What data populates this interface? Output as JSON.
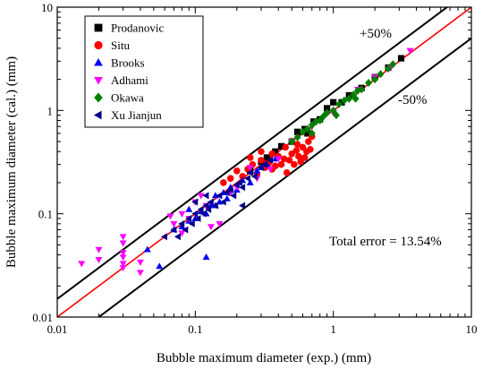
{
  "chart_data": {
    "type": "scatter",
    "title": "",
    "xlabel": "Bubble maximum diameter (exp.) (mm)",
    "ylabel": "Bubble maximum diameter (cal.) (mm)",
    "xscale": "log",
    "yscale": "log",
    "xlim": [
      0.01,
      10
    ],
    "ylim": [
      0.01,
      10
    ],
    "xticks": [
      0.01,
      0.1,
      1,
      10
    ],
    "yticks": [
      0.01,
      0.1,
      1,
      10
    ],
    "xtick_labels": [
      "0.01",
      "0.1",
      "1",
      "10"
    ],
    "ytick_labels": [
      "0.01",
      "0.1",
      "1",
      "10"
    ],
    "grid": false,
    "legend_position": "top-left",
    "reference_lines": [
      {
        "name": "y = x",
        "factor": 1.0,
        "color": "#ff0000"
      },
      {
        "name": "+50%",
        "factor": 1.5,
        "color": "#000000"
      },
      {
        "name": "-50%",
        "factor": 0.5,
        "color": "#000000"
      }
    ],
    "annotations": {
      "upper_band": "+50%",
      "lower_band": "-50%",
      "total_error": "Total error = 13.54%"
    },
    "series": [
      {
        "name": "Prodanovic",
        "marker": "square",
        "color": "#000000",
        "points": [
          [
            0.25,
            0.26
          ],
          [
            0.33,
            0.35
          ],
          [
            0.42,
            0.45
          ],
          [
            0.5,
            0.5
          ],
          [
            0.55,
            0.62
          ],
          [
            0.62,
            0.66
          ],
          [
            0.72,
            0.78
          ],
          [
            0.8,
            0.82
          ],
          [
            0.9,
            1.05
          ],
          [
            1.0,
            1.2
          ],
          [
            1.15,
            1.2
          ],
          [
            1.3,
            1.4
          ],
          [
            1.6,
            1.65
          ],
          [
            2.0,
            2.1
          ],
          [
            2.5,
            2.6
          ],
          [
            3.1,
            3.2
          ],
          [
            0.3,
            0.32
          ],
          [
            0.38,
            0.4
          ],
          [
            0.65,
            0.6
          ]
        ]
      },
      {
        "name": "Situ",
        "marker": "circle",
        "color": "#ff0000",
        "points": [
          [
            0.16,
            0.2
          ],
          [
            0.18,
            0.22
          ],
          [
            0.2,
            0.26
          ],
          [
            0.22,
            0.23
          ],
          [
            0.24,
            0.27
          ],
          [
            0.26,
            0.3
          ],
          [
            0.28,
            0.24
          ],
          [
            0.3,
            0.33
          ],
          [
            0.32,
            0.28
          ],
          [
            0.34,
            0.31
          ],
          [
            0.36,
            0.27
          ],
          [
            0.38,
            0.29
          ],
          [
            0.4,
            0.36
          ],
          [
            0.42,
            0.3
          ],
          [
            0.44,
            0.34
          ],
          [
            0.46,
            0.25
          ],
          [
            0.48,
            0.33
          ],
          [
            0.5,
            0.38
          ],
          [
            0.52,
            0.3
          ],
          [
            0.54,
            0.41
          ],
          [
            0.56,
            0.36
          ],
          [
            0.58,
            0.32
          ],
          [
            0.6,
            0.44
          ],
          [
            0.62,
            0.35
          ],
          [
            0.64,
            0.4
          ],
          [
            0.66,
            0.5
          ],
          [
            0.68,
            0.42
          ],
          [
            0.7,
            0.56
          ],
          [
            0.3,
            0.4
          ],
          [
            0.25,
            0.35
          ],
          [
            0.36,
            0.38
          ],
          [
            0.45,
            0.44
          ],
          [
            0.55,
            0.47
          ]
        ]
      },
      {
        "name": "Brooks",
        "marker": "triangle-up",
        "color": "#0000ff",
        "points": [
          [
            0.045,
            0.045
          ],
          [
            0.055,
            0.031
          ],
          [
            0.07,
            0.07
          ],
          [
            0.08,
            0.075
          ],
          [
            0.09,
            0.085
          ],
          [
            0.1,
            0.09
          ],
          [
            0.11,
            0.105
          ],
          [
            0.12,
            0.1
          ],
          [
            0.13,
            0.12
          ],
          [
            0.14,
            0.15
          ],
          [
            0.15,
            0.13
          ],
          [
            0.16,
            0.16
          ],
          [
            0.17,
            0.14
          ],
          [
            0.18,
            0.18
          ],
          [
            0.2,
            0.17
          ],
          [
            0.22,
            0.21
          ],
          [
            0.25,
            0.2
          ],
          [
            0.28,
            0.26
          ],
          [
            0.3,
            0.28
          ],
          [
            0.33,
            0.3
          ],
          [
            0.38,
            0.34
          ],
          [
            0.12,
            0.038
          ],
          [
            0.09,
            0.11
          ],
          [
            0.14,
            0.12
          ]
        ]
      },
      {
        "name": "Adhami",
        "marker": "triangle-down",
        "color": "#ff00ff",
        "points": [
          [
            0.015,
            0.033
          ],
          [
            0.02,
            0.045
          ],
          [
            0.02,
            0.036
          ],
          [
            0.03,
            0.06
          ],
          [
            0.03,
            0.052
          ],
          [
            0.03,
            0.042
          ],
          [
            0.03,
            0.038
          ],
          [
            0.03,
            0.033
          ],
          [
            0.03,
            0.03
          ],
          [
            0.04,
            0.027
          ],
          [
            0.04,
            0.034
          ],
          [
            0.066,
            0.095
          ],
          [
            0.07,
            0.08
          ],
          [
            0.08,
            0.1
          ],
          [
            0.09,
            0.09
          ],
          [
            0.1,
            0.13
          ],
          [
            0.12,
            0.12
          ],
          [
            0.13,
            0.075
          ],
          [
            0.15,
            0.08
          ],
          [
            0.18,
            0.16
          ],
          [
            0.2,
            0.18
          ],
          [
            0.25,
            0.28
          ],
          [
            0.28,
            0.22
          ],
          [
            0.35,
            0.27
          ],
          [
            0.4,
            0.34
          ],
          [
            0.5,
            0.5
          ],
          [
            0.7,
            0.7
          ],
          [
            1.0,
            0.95
          ],
          [
            1.5,
            1.6
          ],
          [
            2.0,
            2.1
          ],
          [
            3.6,
            3.8
          ],
          [
            2.6,
            2.6
          ],
          [
            0.08,
            0.065
          ],
          [
            0.11,
            0.15
          ]
        ]
      },
      {
        "name": "Okawa",
        "marker": "diamond",
        "color": "#008000",
        "points": [
          [
            0.5,
            0.5
          ],
          [
            0.55,
            0.55
          ],
          [
            0.6,
            0.62
          ],
          [
            0.65,
            0.66
          ],
          [
            0.7,
            0.72
          ],
          [
            0.75,
            0.78
          ],
          [
            0.8,
            0.8
          ],
          [
            0.85,
            0.88
          ],
          [
            0.9,
            0.95
          ],
          [
            1.0,
            1.0
          ],
          [
            1.1,
            1.15
          ],
          [
            1.2,
            1.25
          ],
          [
            1.3,
            1.3
          ],
          [
            1.4,
            1.42
          ],
          [
            1.5,
            1.55
          ],
          [
            1.6,
            1.6
          ],
          [
            1.8,
            1.85
          ],
          [
            2.0,
            2.0
          ],
          [
            2.2,
            2.25
          ],
          [
            2.5,
            2.55
          ],
          [
            2.7,
            2.8
          ],
          [
            0.7,
            0.6
          ],
          [
            1.05,
            0.9
          ],
          [
            1.45,
            1.3
          ]
        ]
      },
      {
        "name": "Xu Jianjun",
        "marker": "triangle-left",
        "color": "#00008b",
        "points": [
          [
            0.06,
            0.06
          ],
          [
            0.07,
            0.07
          ],
          [
            0.075,
            0.06
          ],
          [
            0.08,
            0.08
          ],
          [
            0.085,
            0.07
          ],
          [
            0.09,
            0.09
          ],
          [
            0.095,
            0.08
          ],
          [
            0.1,
            0.1
          ],
          [
            0.105,
            0.09
          ],
          [
            0.11,
            0.11
          ],
          [
            0.115,
            0.1
          ],
          [
            0.12,
            0.12
          ],
          [
            0.125,
            0.11
          ],
          [
            0.13,
            0.13
          ],
          [
            0.14,
            0.12
          ],
          [
            0.15,
            0.15
          ],
          [
            0.16,
            0.13
          ],
          [
            0.17,
            0.16
          ],
          [
            0.18,
            0.17
          ],
          [
            0.19,
            0.15
          ],
          [
            0.2,
            0.19
          ],
          [
            0.21,
            0.2
          ],
          [
            0.22,
            0.18
          ],
          [
            0.24,
            0.22
          ],
          [
            0.25,
            0.25
          ],
          [
            0.27,
            0.23
          ],
          [
            0.3,
            0.28
          ],
          [
            0.32,
            0.3
          ],
          [
            0.35,
            0.33
          ],
          [
            0.22,
            0.12
          ],
          [
            0.1,
            0.13
          ],
          [
            0.12,
            0.15
          ]
        ]
      }
    ]
  }
}
